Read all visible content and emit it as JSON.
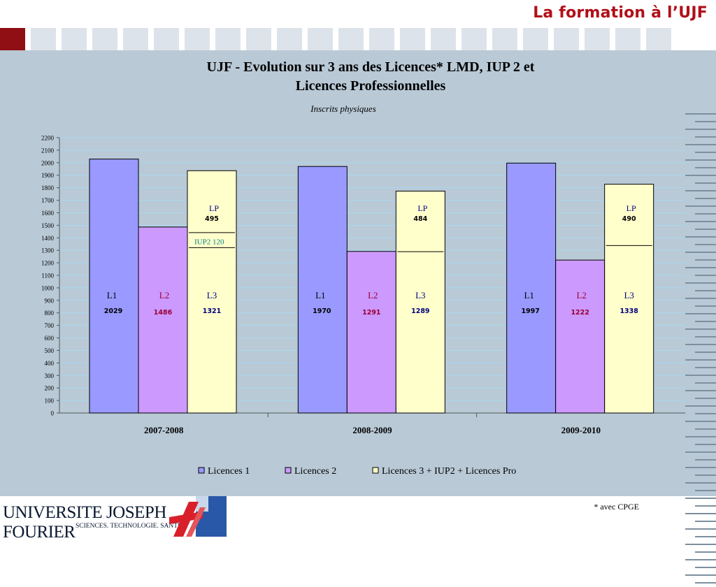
{
  "header": {
    "title": "La formation à l’UJF"
  },
  "footnote": "* avec CPGE",
  "logo": {
    "line1": "UNIVERSITE JOSEPH FOURIER",
    "line2": "SCIENCES. TECHNOLOGIE. SANTÉ"
  },
  "chart_data": {
    "type": "bar",
    "title_line1": "UJF - Evolution sur 3 ans des Licences* LMD, IUP 2 et",
    "title_line2": "Licences Professionnelles",
    "subtitle": "Inscrits physiques",
    "categories": [
      "2007-2008",
      "2008-2009",
      "2009-2010"
    ],
    "series": [
      {
        "name": "Licences 1",
        "short": "L1",
        "values": [
          2029,
          1970,
          1997
        ],
        "color": "#9999ff",
        "label_color": "#000000"
      },
      {
        "name": "Licences 2",
        "short": "L2",
        "values": [
          1486,
          1291,
          1222
        ],
        "color": "#cc99ff",
        "label_color": "#990033"
      },
      {
        "name": "Licences 3 + IUP2 + Licences Pro",
        "short": "L3",
        "values": [
          1936,
          1773,
          1828
        ],
        "color": "#ffffcc",
        "label_color": "#000080"
      }
    ],
    "stack_segments": [
      {
        "l3": 1321,
        "iup2": 120,
        "lp": 495
      },
      {
        "l3": 1289,
        "iup2": null,
        "lp": 484
      },
      {
        "l3": 1338,
        "iup2": null,
        "lp": 490
      }
    ],
    "segment_labels": {
      "lp": "LP",
      "iup2": "IUP2"
    },
    "ylim": [
      0,
      2200
    ],
    "ytick_step": 100,
    "grid": true,
    "legend_position": "bottom"
  }
}
